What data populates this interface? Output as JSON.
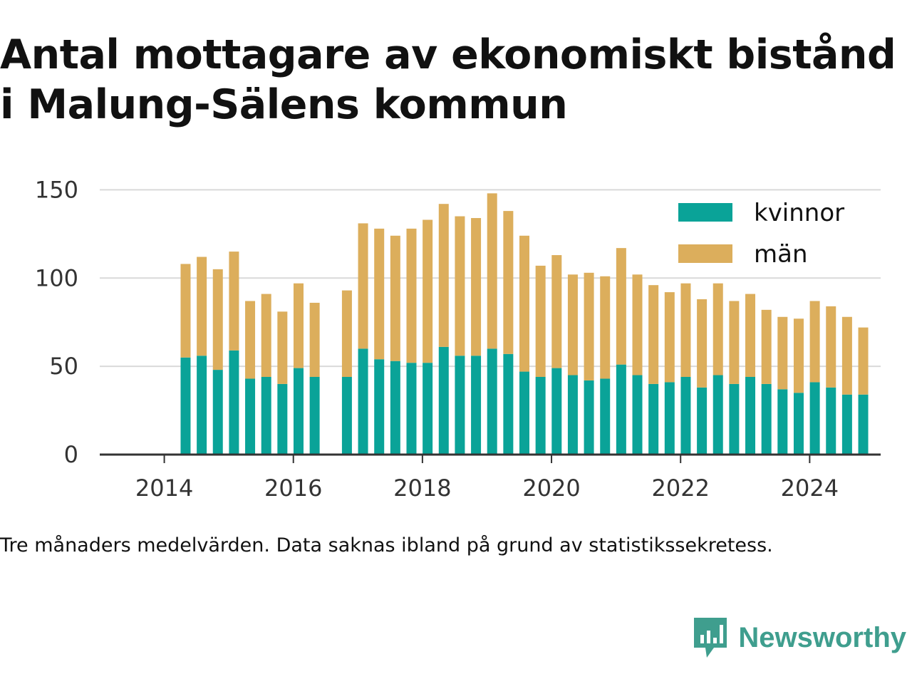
{
  "header": {
    "title_line1": "Antal mottagare av ekonomiskt bistånd",
    "title_line2": "i Malung-Sälens kommun"
  },
  "footer": {
    "note": "Tre månaders medelvärden. Data saknas ibland på grund av statistikssekretess.",
    "brand": "Newsworthy",
    "brand_icon": "newsworthy-logo-icon"
  },
  "colors": {
    "kvinnor": "#0aa398",
    "man": "#dcae5c",
    "grid": "#d9d9d9",
    "axis": "#333333",
    "brand": "#3f9e8e"
  },
  "chart_data": {
    "type": "bar",
    "stacked": true,
    "title": "Antal mottagare av ekonomiskt bistånd i Malung-Sälens kommun",
    "xlabel": "",
    "ylabel": "",
    "xlim": [
      2013.0,
      2025.1
    ],
    "ylim": [
      0,
      155
    ],
    "yticks": [
      0,
      50,
      100,
      150
    ],
    "xticks": [
      2014,
      2016,
      2018,
      2020,
      2022,
      2024
    ],
    "grid": "horizontal",
    "legend_position": "top-right",
    "x": [
      2014.33,
      2014.58,
      2014.83,
      2015.08,
      2015.33,
      2015.58,
      2015.83,
      2016.08,
      2016.33,
      2016.83,
      2017.08,
      2017.33,
      2017.58,
      2017.83,
      2018.08,
      2018.33,
      2018.58,
      2018.83,
      2019.08,
      2019.33,
      2019.58,
      2019.83,
      2020.08,
      2020.33,
      2020.58,
      2020.83,
      2021.08,
      2021.33,
      2021.58,
      2021.83,
      2022.08,
      2022.33,
      2022.58,
      2022.83,
      2023.08,
      2023.33,
      2023.58,
      2023.83,
      2024.08,
      2024.33,
      2024.58,
      2024.83
    ],
    "series": [
      {
        "name": "kvinnor",
        "values": [
          55,
          56,
          48,
          59,
          43,
          44,
          40,
          49,
          44,
          44,
          60,
          54,
          53,
          52,
          52,
          61,
          56,
          56,
          60,
          57,
          47,
          44,
          49,
          45,
          42,
          43,
          51,
          45,
          40,
          41,
          44,
          38,
          45,
          40,
          44,
          40,
          37,
          35,
          41,
          38,
          34,
          34
        ]
      },
      {
        "name": "män",
        "values": [
          53,
          56,
          57,
          56,
          44,
          47,
          41,
          48,
          42,
          49,
          71,
          74,
          71,
          76,
          81,
          81,
          79,
          78,
          88,
          81,
          77,
          63,
          64,
          57,
          61,
          58,
          66,
          57,
          56,
          51,
          53,
          50,
          52,
          47,
          47,
          42,
          41,
          42,
          46,
          46,
          44,
          38
        ]
      }
    ]
  }
}
